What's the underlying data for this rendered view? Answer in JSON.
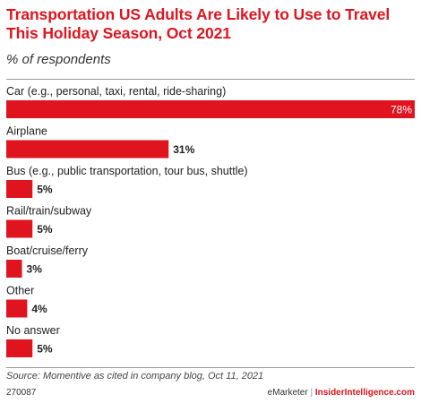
{
  "header": {
    "title": "Transportation US Adults Are Likely to Use to Travel This Holiday Season, Oct 2021",
    "subtitle": "% of respondents"
  },
  "footer": {
    "source": "Source: Momentive as cited in company blog, Oct 11, 2021",
    "chart_id": "270087",
    "brand_a": "eMarketer",
    "brand_sep": " | ",
    "brand_b": "InsiderIntelligence.com"
  },
  "colors": {
    "bar": "#e0141e",
    "title": "#e0141e"
  },
  "chart_data": {
    "type": "bar",
    "orientation": "horizontal",
    "title": "Transportation US Adults Are Likely to Use to Travel This Holiday Season, Oct 2021",
    "subtitle": "% of respondents",
    "categories": [
      "Car (e.g., personal, taxi, rental, ride-sharing)",
      "Airplane",
      "Bus (e.g., public transportation, tour bus, shuttle)",
      "Rail/train/subway",
      "Boat/cruise/ferry",
      "Other",
      "No answer"
    ],
    "values": [
      78,
      31,
      5,
      5,
      3,
      4,
      5
    ],
    "value_labels": [
      "78%",
      "31%",
      "5%",
      "5%",
      "3%",
      "4%",
      "5%"
    ],
    "xlim": [
      0,
      78
    ],
    "grid": false,
    "legend": "none"
  }
}
